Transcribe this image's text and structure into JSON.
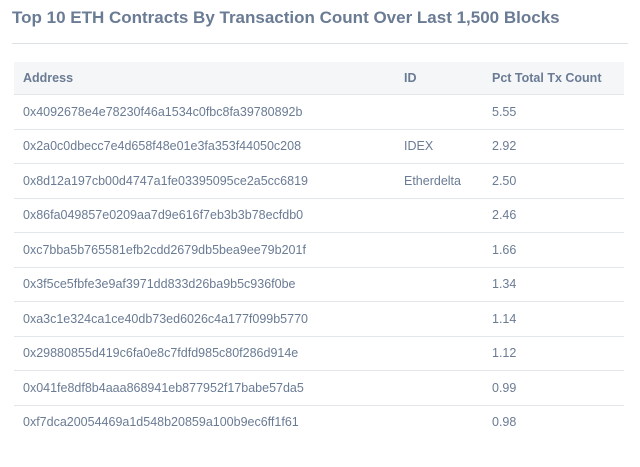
{
  "title": "Top 10 ETH Contracts By Transaction Count Over Last 1,500 Blocks",
  "table": {
    "columns": [
      "Address",
      "ID",
      "Pct Total Tx Count"
    ],
    "rows": [
      {
        "address": "0x4092678e4e78230f46a1534c0fbc8fa39780892b",
        "id": "",
        "pct": "5.55"
      },
      {
        "address": "0x2a0c0dbecc7e4d658f48e01e3fa353f44050c208",
        "id": "IDEX",
        "pct": "2.92"
      },
      {
        "address": "0x8d12a197cb00d4747a1fe03395095ce2a5cc6819",
        "id": "Etherdelta",
        "pct": "2.50"
      },
      {
        "address": "0x86fa049857e0209aa7d9e616f7eb3b3b78ecfdb0",
        "id": "",
        "pct": "2.46"
      },
      {
        "address": "0xc7bba5b765581efb2cdd2679db5bea9ee79b201f",
        "id": "",
        "pct": "1.66"
      },
      {
        "address": "0x3f5ce5fbfe3e9af3971dd833d26ba9b5c936f0be",
        "id": "",
        "pct": "1.34"
      },
      {
        "address": "0xa3c1e324ca1ce40db73ed6026c4a177f099b5770",
        "id": "",
        "pct": "1.14"
      },
      {
        "address": "0x29880855d419c6fa0e8c7fdfd985c80f286d914e",
        "id": "",
        "pct": "1.12"
      },
      {
        "address": "0x041fe8df8b4aaa868941eb877952f17babe57da5",
        "id": "",
        "pct": "0.99"
      },
      {
        "address": "0xf7dca20054469a1d548b20859a100b9ec6ff1f61",
        "id": "",
        "pct": "0.98"
      }
    ]
  }
}
